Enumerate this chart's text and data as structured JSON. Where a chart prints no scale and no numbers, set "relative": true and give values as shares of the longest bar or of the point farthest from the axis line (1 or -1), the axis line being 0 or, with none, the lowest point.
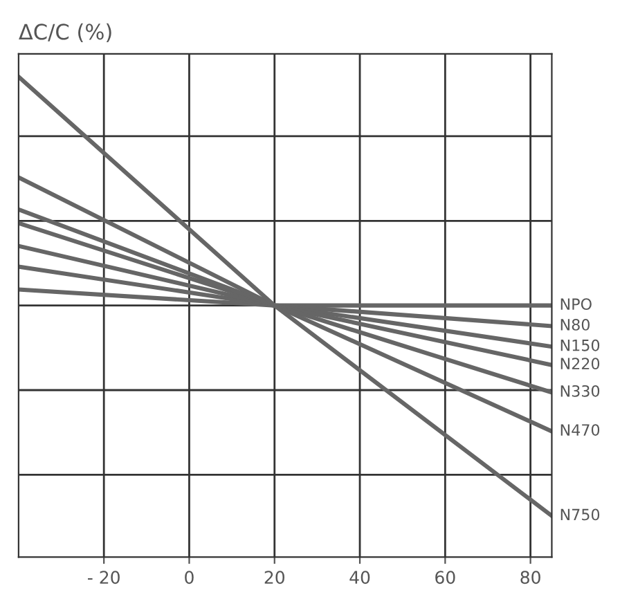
{
  "chart_data": {
    "type": "line",
    "ylabel": "ΔC/C (%)",
    "relative": true,
    "xlim": [
      -40,
      85
    ],
    "xticks": [
      {
        "value": -20,
        "label": "- 20"
      },
      0,
      20,
      40,
      60,
      80
    ],
    "grid": true,
    "tick_labels": "x",
    "legend": false,
    "marker": "none",
    "line_style": "solid",
    "series": [
      {
        "name": "NPO",
        "color": "#666666",
        "x": [
          -40,
          20,
          85
        ],
        "values": [
          0.07,
          0,
          0
        ]
      },
      {
        "name": "N80",
        "color": "#666666",
        "x": [
          -40,
          20,
          85
        ],
        "values": [
          0.17,
          0,
          -0.09
        ]
      },
      {
        "name": "N150",
        "color": "#666666",
        "x": [
          -40,
          20,
          85
        ],
        "values": [
          0.26,
          0,
          -0.18
        ]
      },
      {
        "name": "N220",
        "color": "#666666",
        "x": [
          -40,
          20,
          85
        ],
        "values": [
          0.36,
          0,
          -0.26
        ]
      },
      {
        "name": "N330",
        "color": "#666666",
        "x": [
          -40,
          20,
          85
        ],
        "values": [
          0.42,
          0,
          -0.38
        ]
      },
      {
        "name": "N470",
        "color": "#666666",
        "x": [
          -40,
          20,
          85
        ],
        "values": [
          0.56,
          0,
          -0.55
        ]
      },
      {
        "name": "N750",
        "color": "#666666",
        "x": [
          -40,
          20,
          85
        ],
        "values": [
          1,
          0,
          -0.92
        ]
      }
    ]
  }
}
